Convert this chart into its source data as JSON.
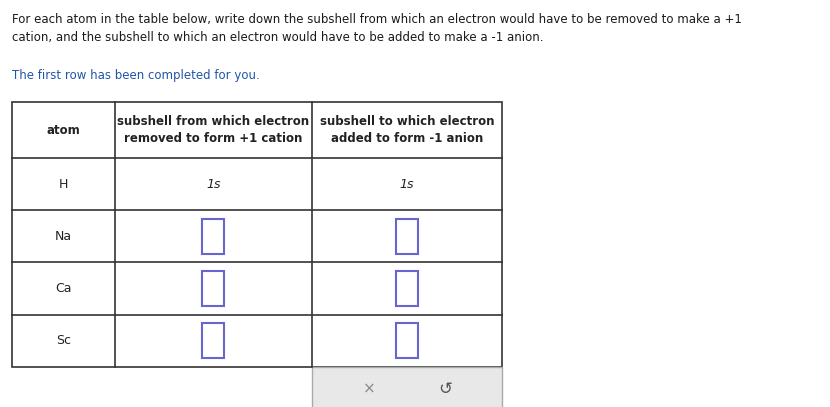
{
  "background_color": "#ffffff",
  "title_text": "For each atom in the table below, write down the subshell from which an electron would have to be removed to make a +1\ncation, and the subshell to which an electron would have to be added to make a -1 anion.",
  "subtitle_text": "The first row has been completed for you.",
  "title_color": "#1a1a1a",
  "subtitle_color": "#2255aa",
  "header_row": [
    "atom",
    "subshell from which electron\nremoved to form +1 cation",
    "subshell to which electron\nadded to form -1 anion"
  ],
  "atoms": [
    "H",
    "Na",
    "Ca",
    "Sc"
  ],
  "col2_values": [
    "1s",
    "",
    "",
    ""
  ],
  "col3_values": [
    "1s",
    "",
    "",
    ""
  ],
  "input_box_color": "#6666cc",
  "input_box_fill": "#ffffff",
  "footer_box_fill": "#e8e8e8",
  "footer_x_color": "#888888",
  "footer_undo_color": "#555555",
  "text_color_dark": "#222222",
  "font_size_header": 8.5,
  "font_size_body": 9,
  "font_size_title": 8.5,
  "font_size_subtitle": 8.5
}
